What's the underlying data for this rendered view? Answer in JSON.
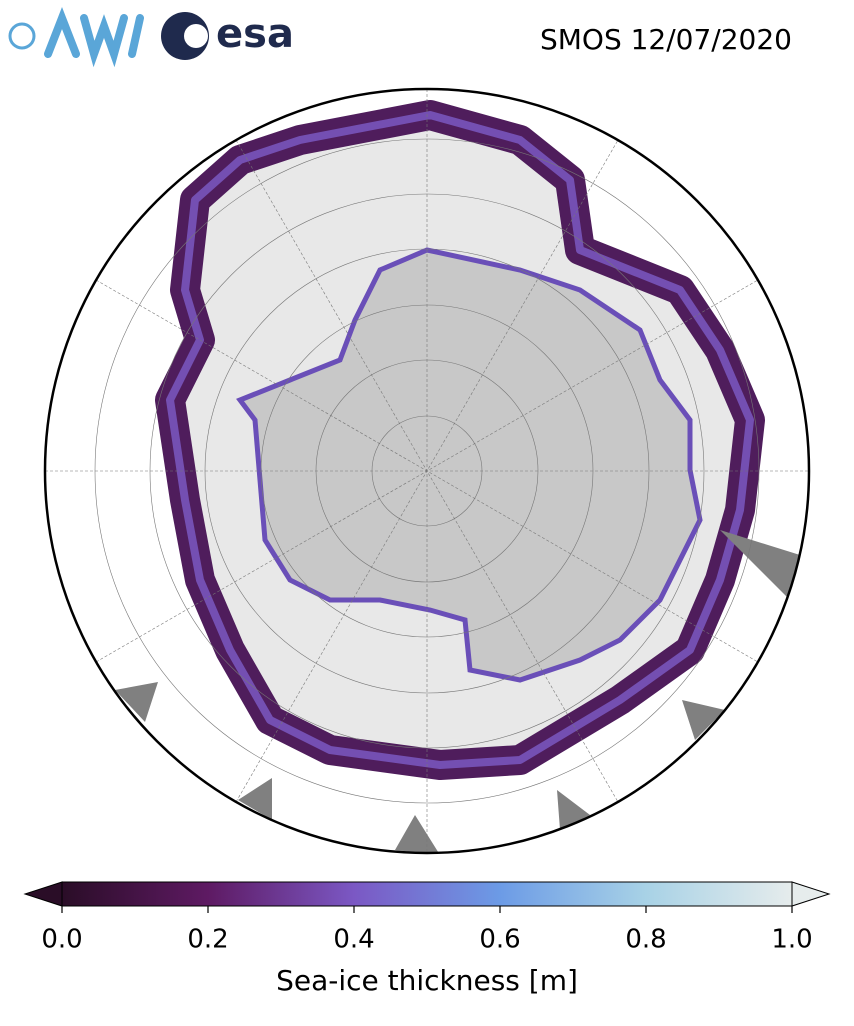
{
  "header": {
    "logo_text": "esa",
    "title": "SMOS 12/07/2020"
  },
  "colorbar": {
    "label": "Sea-ice thickness [m]",
    "lim": [
      0,
      1
    ],
    "colors": [
      "#2a0d27",
      "#5e1a63",
      "#7b58c4",
      "#6c9be6",
      "#a8d2e6",
      "#e6ecec"
    ],
    "ticks": [
      {
        "value": 0,
        "label": "0.0"
      },
      {
        "value": 0.2,
        "label": "0.2"
      },
      {
        "value": 0.4,
        "label": "0.4"
      },
      {
        "value": 0.6,
        "label": "0.6"
      },
      {
        "value": 0.8,
        "label": "0.8"
      },
      {
        "value": 1,
        "label": "1.0"
      }
    ]
  }
}
